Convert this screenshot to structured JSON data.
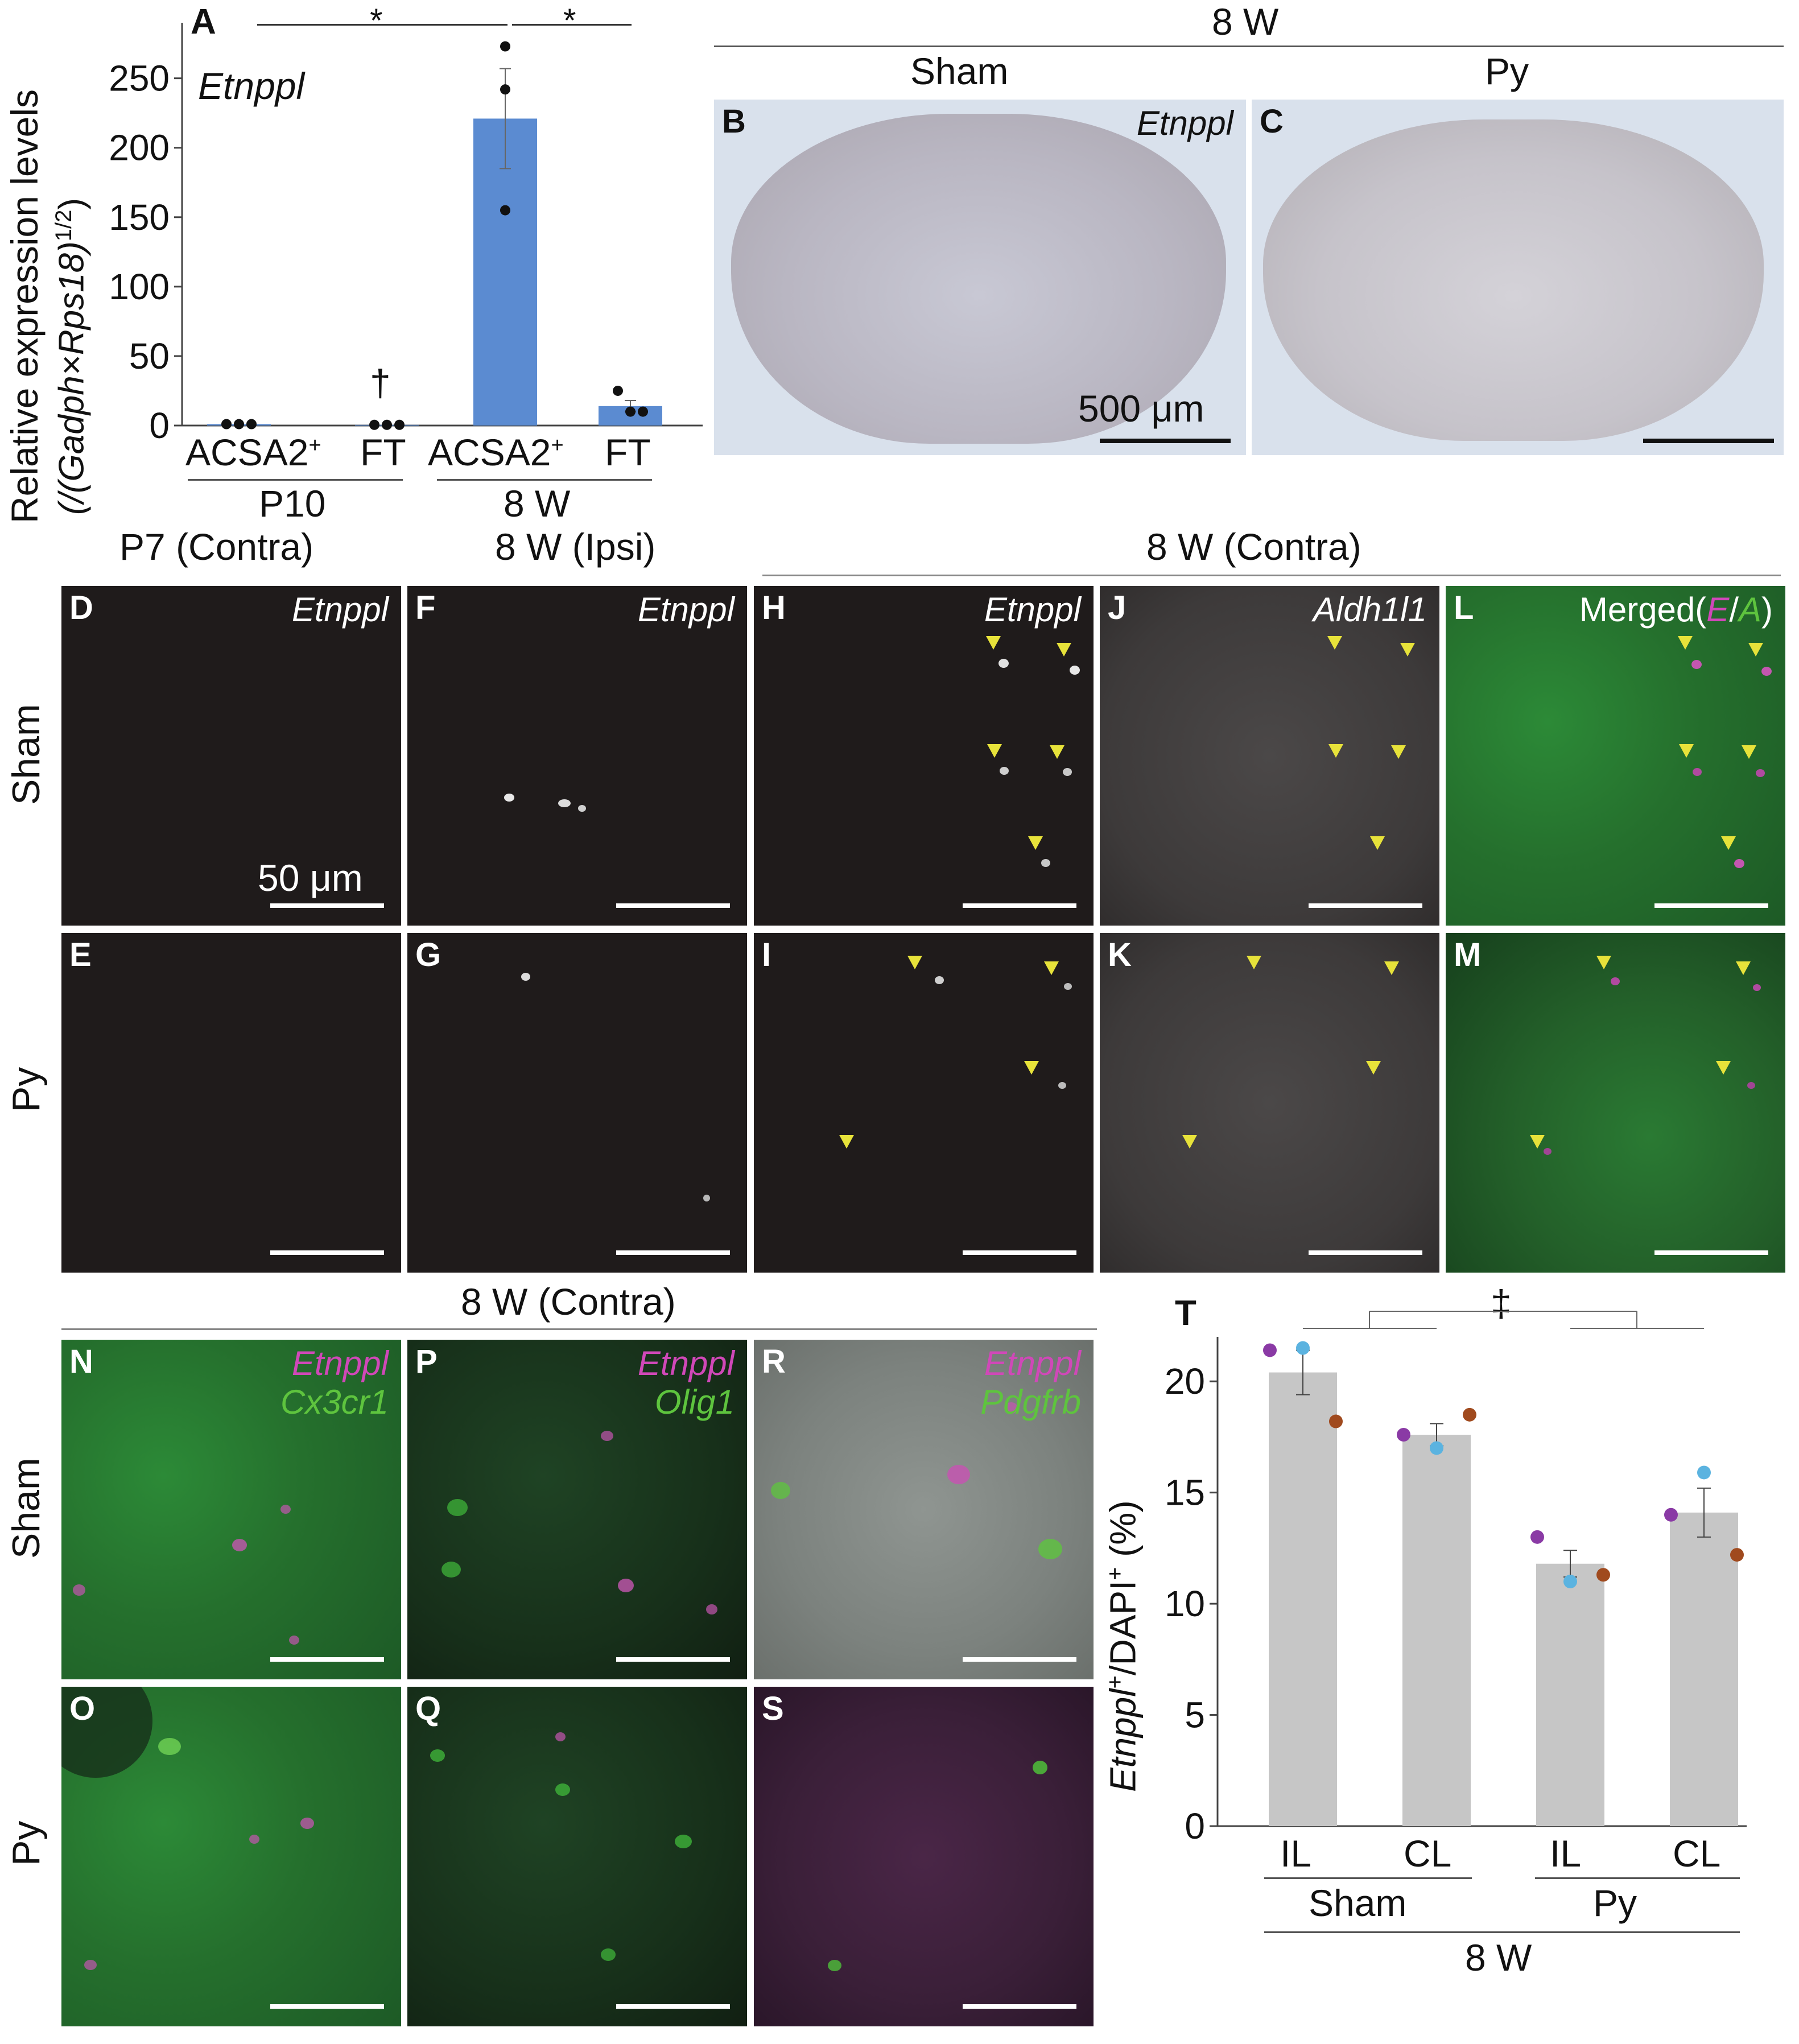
{
  "panel_a": {
    "label": "A",
    "gene": "Etnppl",
    "ylabel_line1": "Relative expression levels",
    "ylabel_line2": "(/(Gadph×Rps18)",
    "ylabel_sup": "1/2",
    "ylabel_close": ")",
    "yticks": [
      "0",
      "50",
      "100",
      "150",
      "200",
      "250"
    ],
    "categories": [
      "ACSA2",
      "FT",
      "ACSA2",
      "FT"
    ],
    "cat_sup": "+",
    "groups": [
      "P10",
      "8 W"
    ],
    "sig_marks": [
      "*",
      "*"
    ],
    "dagger": "†"
  },
  "chart_data": [
    {
      "type": "bar",
      "title": "Etnppl",
      "ylabel": "Relative expression levels (/(Gadph×Rps18)1/2)",
      "categories": [
        "P10 ACSA2+",
        "P10 FT",
        "8 W ACSA2+",
        "8 W FT"
      ],
      "values": [
        1,
        0.5,
        221,
        14
      ],
      "errors": [
        0.5,
        0.3,
        36,
        4
      ],
      "points": [
        [
          1,
          1,
          1
        ],
        [
          0.5,
          0.5,
          0.5
        ],
        [
          273,
          242,
          155
        ],
        [
          25,
          10,
          10
        ]
      ],
      "ylim": [
        0,
        290
      ],
      "bar_color": "#5b8bd1"
    },
    {
      "type": "bar",
      "title": "",
      "ylabel": "Etnppl+/DAPI+ (%)",
      "categories": [
        "Sham IL",
        "Sham CL",
        "Py IL",
        "Py CL"
      ],
      "values": [
        20.4,
        17.6,
        11.8,
        14.1
      ],
      "errors": [
        1.0,
        0.5,
        0.6,
        1.1
      ],
      "points": [
        [
          21.4,
          21.5,
          18.2
        ],
        [
          17.6,
          17.0,
          18.5
        ],
        [
          13.0,
          11.0,
          11.3
        ],
        [
          14.0,
          15.9,
          12.2
        ]
      ],
      "point_colors": [
        "#8a3aa5",
        "#5bb3e0",
        "#a04a1e"
      ],
      "ylim": [
        0,
        22
      ],
      "bar_color": "#c6c6c6"
    }
  ],
  "top_right": {
    "header": "8 W",
    "col_sham": "Sham",
    "col_py": "Py",
    "label_b": "B",
    "label_c": "C",
    "gene": "Etnppl",
    "scale": "500 μm"
  },
  "grid1": {
    "hdr_p7": "P7 (Contra)",
    "hdr_ipsi": "8 W (Ipsi)",
    "hdr_contra": "8 W (Contra)",
    "row_sham": "Sham",
    "row_py": "Py",
    "scale": "50 μm",
    "labels_top": [
      "D",
      "F",
      "H",
      "J",
      "L"
    ],
    "labels_bottom": [
      "E",
      "G",
      "I",
      "K",
      "M"
    ],
    "genes_top": [
      "Etnppl",
      "Etnppl",
      "Etnppl",
      "Aldh1l1"
    ],
    "merged_prefix": "Merged(",
    "merged_e": "E",
    "merged_slash": "/",
    "merged_a": "A",
    "merged_suffix": ")"
  },
  "grid2": {
    "header": "8 W (Contra)",
    "row_sham": "Sham",
    "row_py": "Py",
    "labels_top": [
      "N",
      "P",
      "R"
    ],
    "labels_bottom": [
      "O",
      "Q",
      "S"
    ],
    "gene_magenta": "Etnppl",
    "gene_green": [
      "Cx3cr1",
      "Olig1",
      "Pdgfrb"
    ]
  },
  "panel_t": {
    "label": "T",
    "sig": "‡",
    "ylabel_pre": "Etnppl",
    "ylabel_sup1": "+",
    "ylabel_mid": "/DAPI",
    "ylabel_sup2": "+",
    "ylabel_post": " (%)",
    "yticks": [
      "0",
      "5",
      "10",
      "15",
      "20"
    ],
    "cats": [
      "IL",
      "CL",
      "IL",
      "CL"
    ],
    "groups": [
      "Sham",
      "Py"
    ],
    "bottom": "8 W"
  },
  "colors": {
    "magenta": "#d048b8",
    "green": "#5ec43e",
    "arrow": "#e7e23a",
    "bar_a": "#5b8bd1",
    "bar_t": "#c6c6c6"
  }
}
